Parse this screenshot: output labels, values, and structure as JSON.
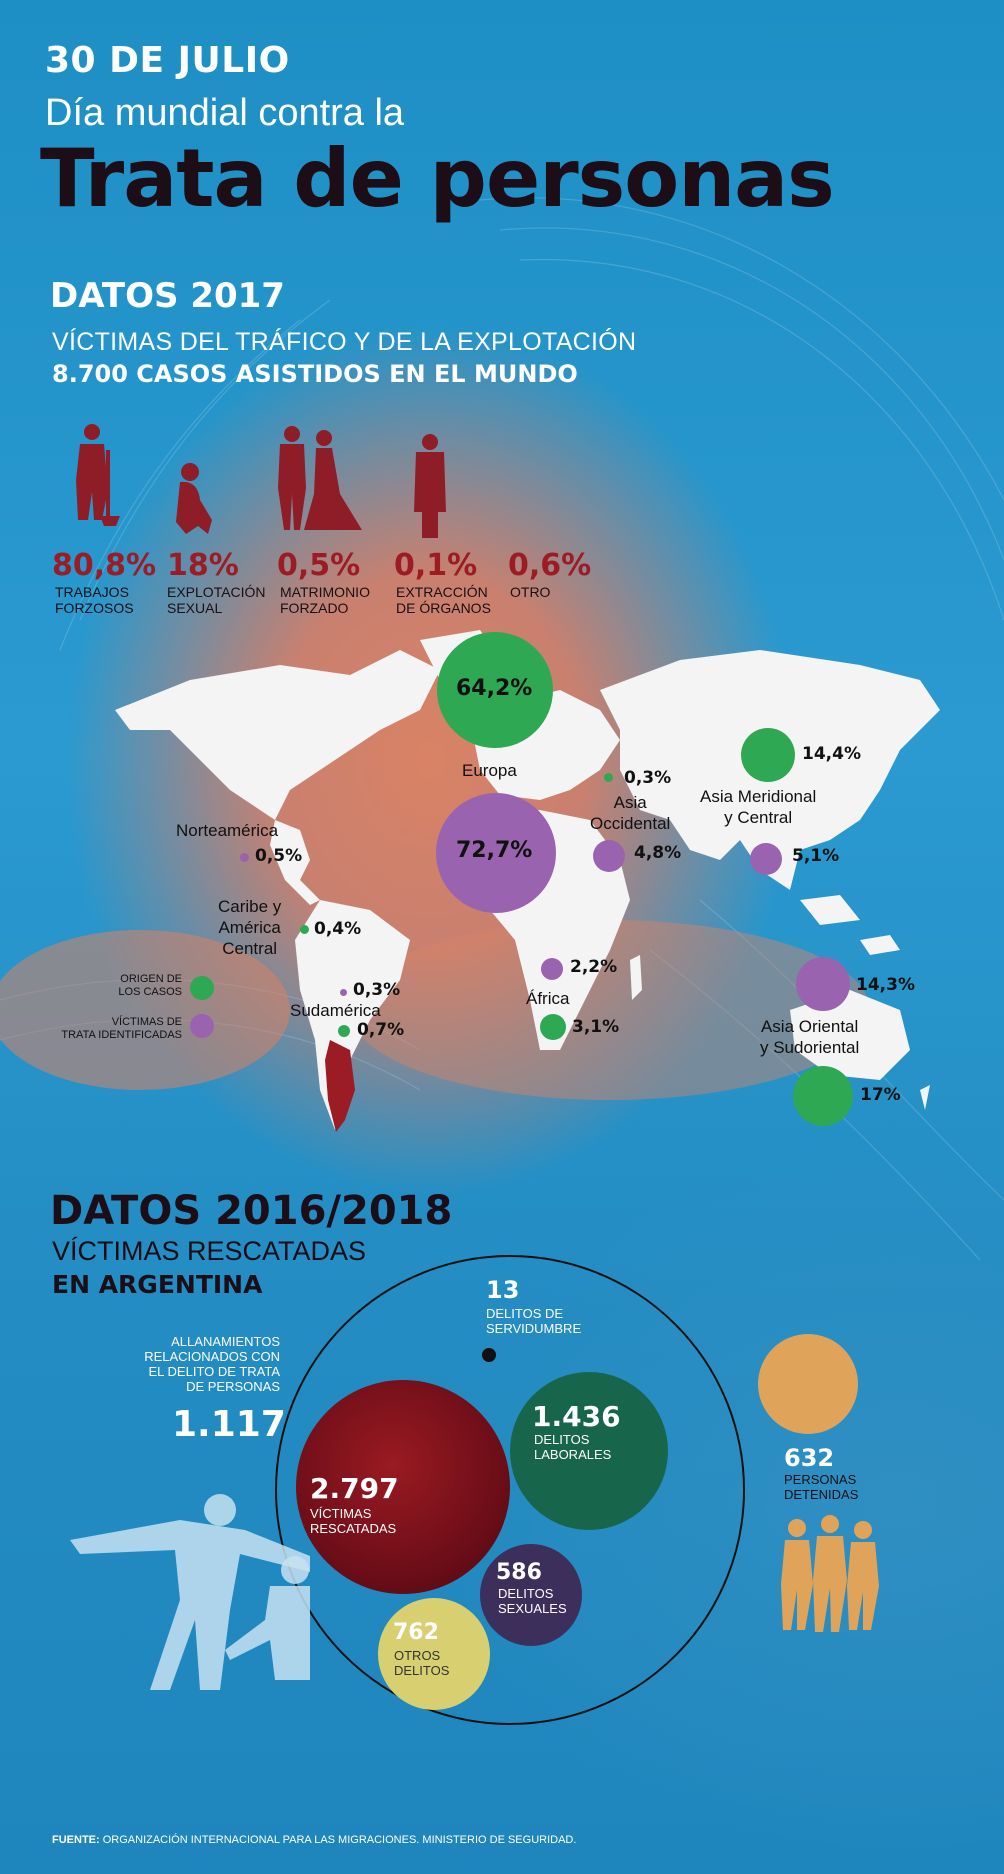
{
  "header": {
    "date": "30 DE JULIO",
    "subtitle": "Día mundial contra la",
    "title": "Trata de personas"
  },
  "world": {
    "heading": "DATOS 2017",
    "line1": "VÍCTIMAS DEL TRÁFICO Y DE LA EXPLOTACIÓN",
    "line2": "8.700 CASOS ASISTIDOS EN EL MUNDO",
    "types": [
      {
        "value": "80,8%",
        "label1": "TRABAJOS",
        "label2": "FORZOSOS",
        "icon": "forced-labor-icon"
      },
      {
        "value": "18%",
        "label1": "EXPLOTACIÓN",
        "label2": "SEXUAL",
        "icon": "sexual-exploitation-icon"
      },
      {
        "value": "0,5%",
        "label1": "MATRIMONIO",
        "label2": "FORZADO",
        "icon": "forced-marriage-icon"
      },
      {
        "value": "0,1%",
        "label1": "EXTRACCIÓN",
        "label2": "DE ÓRGANOS",
        "icon": "organ-extraction-icon"
      },
      {
        "value": "0,6%",
        "label1": "OTRO",
        "label2": "",
        "icon": ""
      }
    ],
    "regions": {
      "europa": {
        "name": "Europa",
        "origin": "64,2%",
        "victims": "72,7%"
      },
      "norteamerica": {
        "name": "Norteamérica",
        "victims": "0,5%"
      },
      "caribe": {
        "name1": "Caribe y",
        "name2": "América",
        "name3": "Central",
        "origin": "0,4%"
      },
      "sudamerica": {
        "name": "Sudamérica",
        "victims": "0,3%",
        "origin": "0,7%"
      },
      "asia_occ": {
        "name1": "Asia",
        "name2": "Occidental",
        "origin": "0,3%",
        "victims": "4,8%"
      },
      "asia_mer": {
        "name1": "Asia Meridional",
        "name2": "y Central",
        "origin": "14,4%",
        "victims": "5,1%"
      },
      "africa": {
        "name": "África",
        "victims": "2,2%",
        "origin": "3,1%"
      },
      "asia_or": {
        "name1": "Asia Oriental",
        "name2": "y Sudoriental",
        "victims": "14,3%",
        "origin": "17%"
      }
    },
    "legend": {
      "origin1": "ORIGEN DE",
      "origin2": "LOS CASOS",
      "victims1": "VÍCTIMAS DE",
      "victims2": "TRATA IDENTIFICADAS"
    },
    "colors": {
      "origin": "#2fa854",
      "victims": "#9a63b0",
      "highlight": "#9b1c24"
    }
  },
  "argentina": {
    "heading": "DATOS 2016/2018",
    "line1": "VÍCTIMAS RESCATADAS",
    "line2": "EN ARGENTINA",
    "raids": {
      "l1": "ALLANAMIENTOS",
      "l2": "RELACIONADOS CON",
      "l3": "EL DELITO DE TRATA",
      "l4": "DE PERSONAS",
      "value": "1.117"
    },
    "servitude": {
      "value": "13",
      "l1": "DELITOS DE",
      "l2": "SERVIDUMBRE"
    },
    "victims": {
      "value": "2.797",
      "l1": "VÍCTIMAS",
      "l2": "RESCATADAS"
    },
    "labor": {
      "value": "1.436",
      "l1": "DELITOS",
      "l2": "LABORALES"
    },
    "sexual": {
      "value": "586",
      "l1": "DELITOS",
      "l2": "SEXUALES"
    },
    "other": {
      "value": "762",
      "l1": "OTROS",
      "l2": "DELITOS"
    },
    "detained": {
      "value": "632",
      "l1": "PERSONAS",
      "l2": "DETENIDAS"
    }
  },
  "source": {
    "label": "FUENTE:",
    "text": "ORGANIZACIÓN INTERNACIONAL PARA LAS MIGRACIONES. MINISTERIO DE SEGURIDAD."
  }
}
